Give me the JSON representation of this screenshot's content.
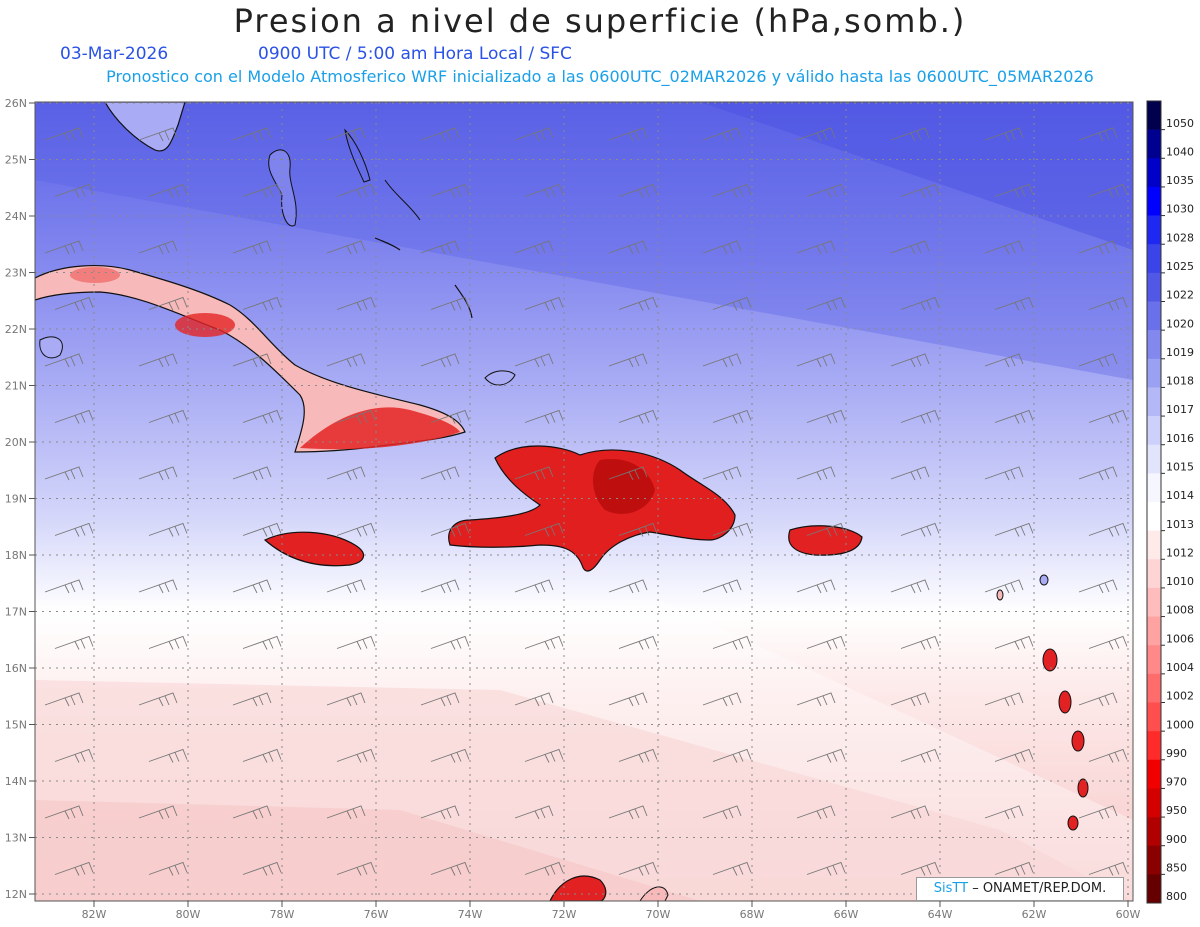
{
  "header": {
    "title": "Presion a nivel de superficie (hPa,somb.)",
    "date": "03-Mar-2026",
    "time_info": "0900 UTC / 5:00 am Hora Local / SFC",
    "forecast_info": "Pronostico con el Modelo Atmosferico WRF inicializado a las 0600UTC_02MAR2026 y válido hasta las  0600UTC_05MAR2026"
  },
  "map": {
    "lat_labels": [
      "26N",
      "25N",
      "24N",
      "23N",
      "22N",
      "21N",
      "20N",
      "19N",
      "18N",
      "17N",
      "16N",
      "15N",
      "14N",
      "13N",
      "12N"
    ],
    "lon_labels": [
      "82W",
      "80W",
      "78W",
      "76W",
      "74W",
      "72W",
      "70W",
      "68W",
      "66W",
      "64W",
      "62W",
      "60W"
    ],
    "colors": {
      "high": "#5a5fe6",
      "mid": "#a9abf4",
      "neutral": "#ffffff",
      "low": "#f7c9c9",
      "land_low": "#e31b1b"
    }
  },
  "colorbar": {
    "labels": [
      "1050",
      "1040",
      "1035",
      "1030",
      "1028",
      "1025",
      "1022",
      "1020",
      "1019",
      "1018",
      "1017",
      "1016",
      "1015",
      "1014",
      "1013",
      "1012",
      "1010",
      "1008",
      "1006",
      "1004",
      "1002",
      "1000",
      "990",
      "970",
      "950",
      "900",
      "850",
      "800"
    ],
    "colors": [
      "#00004d",
      "#000090",
      "#0000c8",
      "#0000ff",
      "#1e28f0",
      "#3a44e8",
      "#5258e6",
      "#6a70ea",
      "#8288ee",
      "#9aa0f2",
      "#b4b8f6",
      "#ccd0fa",
      "#e2e4fc",
      "#f6f6ff",
      "#ffffff",
      "#ffeaea",
      "#ffd4d4",
      "#ffbcbc",
      "#ffa2a2",
      "#ff8888",
      "#ff6c6c",
      "#ff4e4e",
      "#ff2a2a",
      "#f00000",
      "#d40000",
      "#b00000",
      "#8a0000",
      "#660000"
    ]
  },
  "credit": {
    "brand": "SisTT",
    "text": " – ONAMET/REP.DOM."
  }
}
